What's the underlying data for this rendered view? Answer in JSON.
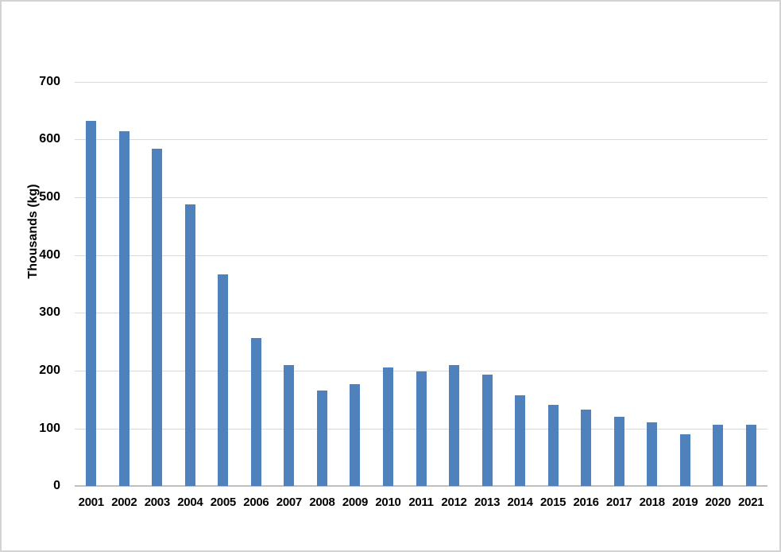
{
  "chart_data": {
    "type": "bar",
    "title": "",
    "xlabel": "",
    "ylabel": "Thousands (kg)",
    "categories": [
      "2001",
      "2002",
      "2003",
      "2004",
      "2005",
      "2006",
      "2007",
      "2008",
      "2009",
      "2010",
      "2011",
      "2012",
      "2013",
      "2014",
      "2015",
      "2016",
      "2017",
      "2018",
      "2019",
      "2020",
      "2021"
    ],
    "values": [
      632,
      614,
      584,
      488,
      366,
      257,
      209,
      166,
      176,
      206,
      199,
      209,
      193,
      158,
      141,
      133,
      120,
      110,
      90,
      106,
      107
    ],
    "y_ticks": [
      0,
      100,
      200,
      300,
      400,
      500,
      600,
      700
    ],
    "ylim": [
      0,
      700
    ],
    "grid": true,
    "legend_position": "none",
    "colors": {
      "bar": "#4F81BD",
      "gridline": "#D9D9D9",
      "axis_line": "#BFBFBF",
      "text": "#000000",
      "background": "#FFFFFF",
      "border": "#D3D3D3"
    }
  }
}
